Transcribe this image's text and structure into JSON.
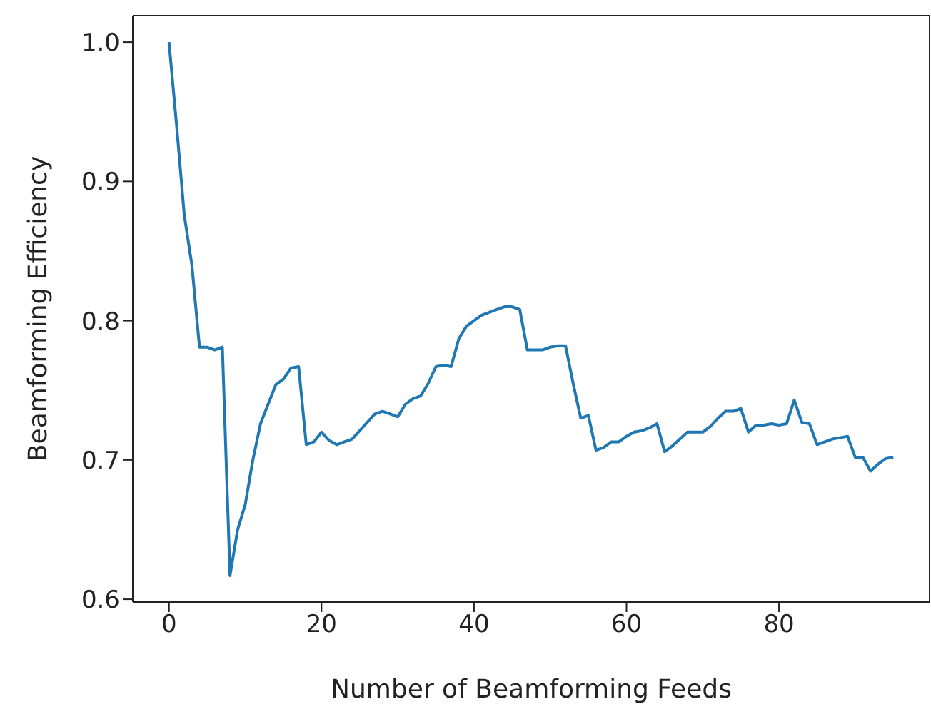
{
  "chart_data": {
    "type": "line",
    "xlabel": "Number of Beamforming Feeds",
    "ylabel": "Beamforming Efficiency",
    "x": [
      0,
      1,
      2,
      3,
      4,
      5,
      6,
      7,
      8,
      9,
      10,
      11,
      12,
      13,
      14,
      15,
      16,
      17,
      18,
      19,
      20,
      21,
      22,
      23,
      24,
      25,
      26,
      27,
      28,
      29,
      30,
      31,
      32,
      33,
      34,
      35,
      36,
      37,
      38,
      39,
      40,
      41,
      42,
      43,
      44,
      45,
      46,
      47,
      48,
      49,
      50,
      51,
      52,
      53,
      54,
      55,
      56,
      57,
      58,
      59,
      60,
      61,
      62,
      63,
      64,
      65,
      66,
      67,
      68,
      69,
      70,
      71,
      72,
      73,
      74,
      75,
      76,
      77,
      78,
      79,
      80,
      81,
      82,
      83,
      84,
      85,
      86,
      87,
      88,
      89,
      90,
      91,
      92,
      93,
      94,
      95
    ],
    "series": [
      {
        "color": "#1f77b4",
        "values": [
          1.0,
          0.94,
          0.876,
          0.84,
          0.781,
          0.781,
          0.779,
          0.781,
          0.617,
          0.65,
          0.668,
          0.7,
          0.726,
          0.74,
          0.754,
          0.758,
          0.766,
          0.767,
          0.711,
          0.713,
          0.72,
          0.714,
          0.711,
          0.713,
          0.715,
          0.721,
          0.727,
          0.733,
          0.735,
          0.733,
          0.731,
          0.74,
          0.744,
          0.746,
          0.755,
          0.767,
          0.768,
          0.767,
          0.787,
          0.796,
          0.8,
          0.804,
          0.806,
          0.808,
          0.81,
          0.81,
          0.808,
          0.779,
          0.779,
          0.779,
          0.781,
          0.782,
          0.782,
          0.755,
          0.73,
          0.732,
          0.707,
          0.709,
          0.713,
          0.713,
          0.717,
          0.72,
          0.721,
          0.723,
          0.726,
          0.706,
          0.71,
          0.715,
          0.72,
          0.72,
          0.72,
          0.724,
          0.73,
          0.735,
          0.735,
          0.737,
          0.72,
          0.725,
          0.725,
          0.726,
          0.725,
          0.726,
          0.743,
          0.727,
          0.726,
          0.711,
          0.713,
          0.715,
          0.716,
          0.717,
          0.702,
          0.702,
          0.692,
          0.697,
          0.701,
          0.702
        ]
      }
    ],
    "xlim": [
      -4.75,
      99.75
    ],
    "ylim": [
      0.598,
      1.019
    ],
    "xticks": [
      0,
      20,
      40,
      60,
      80
    ],
    "yticks": [
      {
        "value": 0.6,
        "label": "0.6"
      },
      {
        "value": 0.7,
        "label": "0.7"
      },
      {
        "value": 0.8,
        "label": "0.8"
      },
      {
        "value": 0.9,
        "label": "0.9"
      },
      {
        "value": 1.0,
        "label": "1.0"
      }
    ],
    "marker": "none",
    "line_style": "solid"
  }
}
